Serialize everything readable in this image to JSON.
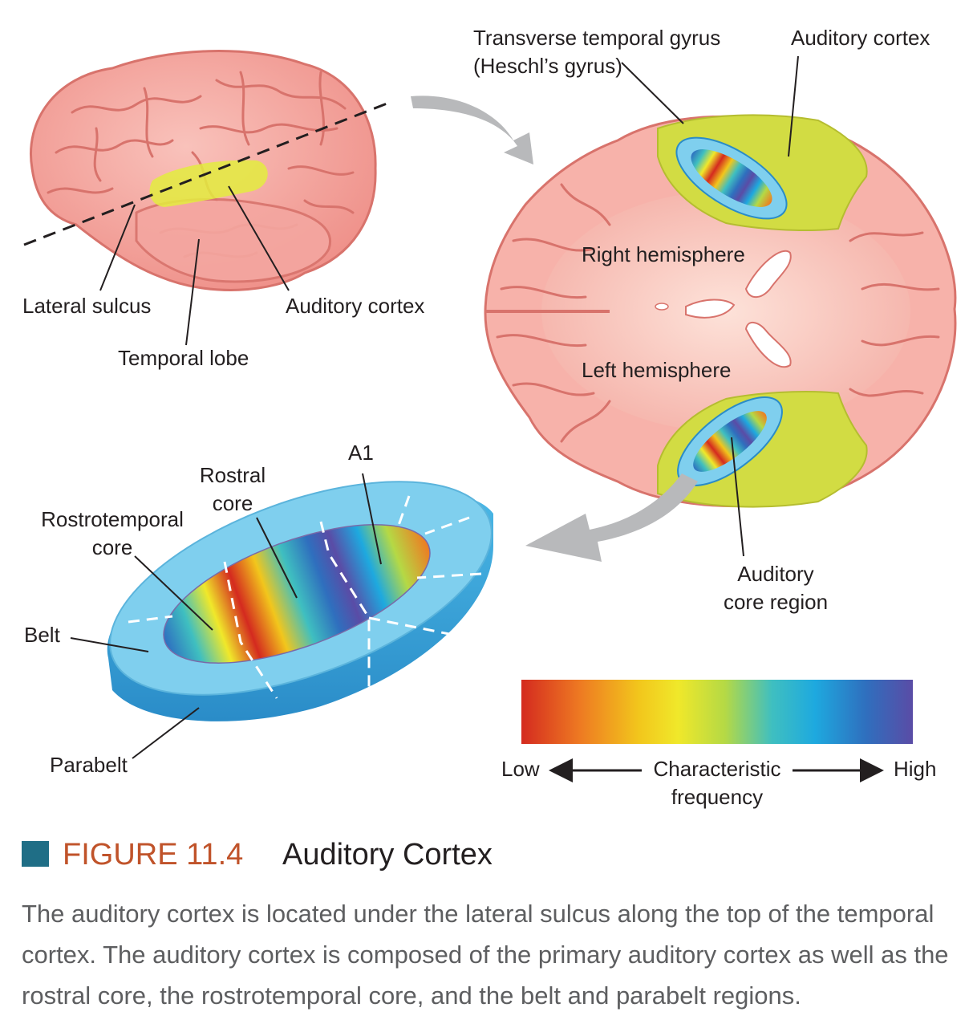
{
  "labels": {
    "transverse_gyrus_line1": "Transverse temporal gyrus",
    "transverse_gyrus_line2": "(Heschl’s gyrus)",
    "auditory_cortex_top": "Auditory cortex",
    "lateral_sulcus": "Lateral sulcus",
    "auditory_cortex_left": "Auditory cortex",
    "temporal_lobe": "Temporal lobe",
    "right_hemisphere": "Right hemisphere",
    "left_hemisphere": "Left hemisphere",
    "a1": "A1",
    "rostral_core_line1": "Rostral",
    "rostral_core_line2": "core",
    "rostrotemporal_line1": "Rostrotemporal",
    "rostrotemporal_line2": "core",
    "belt": "Belt",
    "parabelt": "Parabelt",
    "auditory_core_line1": "Auditory",
    "auditory_core_line2": "core region"
  },
  "scale": {
    "low": "Low",
    "high": "High",
    "title_line1": "Characteristic",
    "title_line2": "frequency",
    "colors": [
      "#d42a1f",
      "#ee7a22",
      "#f2c61c",
      "#f0e82a",
      "#b5d945",
      "#3fbfc0",
      "#1ea9df",
      "#2f6fbe",
      "#5a4ca6"
    ]
  },
  "caption": {
    "figure_number": "FIGURE 11.4",
    "title": "Auditory Cortex",
    "text": "The auditory cortex is located under the lateral sulcus along the top of the temporal cortex. The auditory cortex is composed of the primary auditory cortex as well as the rostral core, the rostrotemporal core, and the belt and parabelt regions."
  },
  "colors": {
    "brain_pink": "#f4a6a0",
    "brain_outline": "#d8736c",
    "auditory_yellow": "#d8e34a",
    "belt_blue": "#7fcfee",
    "parabelt_blue": "#3aa8dc",
    "fig_square": "#1f6e86",
    "fig_number": "#c0532a",
    "caption_gray": "#5d5e60"
  }
}
